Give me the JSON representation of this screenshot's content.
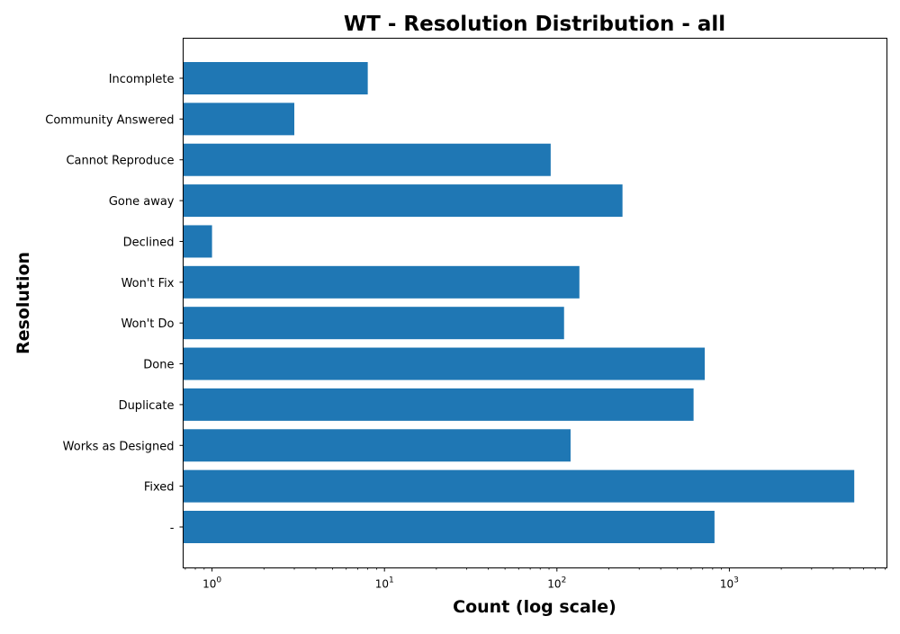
{
  "chart_data": {
    "type": "bar",
    "orientation": "horizontal",
    "title": "WT - Resolution Distribution - all",
    "xlabel": "Count (log scale)",
    "ylabel": "Resolution",
    "x_scale": "log",
    "xlim": [
      0.68,
      8200
    ],
    "grid": false,
    "categories": [
      "-",
      "Fixed",
      "Works as Designed",
      "Duplicate",
      "Done",
      "Won't Do",
      "Won't Fix",
      "Declined",
      "Gone away",
      "Cannot Reproduce",
      "Community Answered",
      "Incomplete"
    ],
    "values": [
      820,
      5300,
      120,
      620,
      720,
      110,
      135,
      1,
      240,
      92,
      3,
      8
    ],
    "x_ticks": [
      {
        "value": 1,
        "label_base": "10",
        "label_exp": "0"
      },
      {
        "value": 10,
        "label_base": "10",
        "label_exp": "1"
      },
      {
        "value": 100,
        "label_base": "10",
        "label_exp": "2"
      },
      {
        "value": 1000,
        "label_base": "10",
        "label_exp": "3"
      }
    ],
    "bar_color": "#1f77b4"
  }
}
